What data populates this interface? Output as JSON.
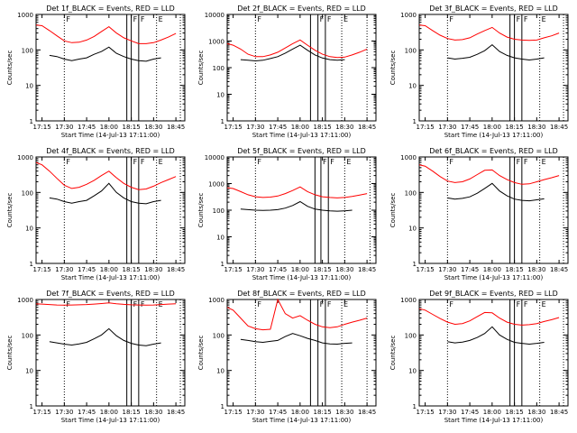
{
  "figure": {
    "y_axis_label": "Counts/sec",
    "x_axis_label": "Start Time (14-Jul-13 17:11:00)"
  },
  "chart_data": [
    {
      "type": "line",
      "title": "Det 1f_BLACK = Events, RED = LLD",
      "xlabel": "Start Time (14-Jul-13 17:11:00)",
      "ylabel": "Counts/sec",
      "yscale": "log",
      "ylim": [
        1,
        1000
      ],
      "x_tick_labels": [
        "17:15",
        "17:30",
        "17:45",
        "18:00",
        "18:15",
        "18:30",
        "18:45"
      ],
      "y_tick_labels": [
        "1",
        "10",
        "100",
        "1000"
      ],
      "x": [
        "17:11",
        "17:15",
        "17:20",
        "17:25",
        "17:30",
        "17:35",
        "17:40",
        "17:45",
        "17:50",
        "17:55",
        "18:00",
        "18:05",
        "18:10",
        "18:15",
        "18:20",
        "18:25",
        "18:30",
        "18:35",
        "18:40",
        "18:45"
      ],
      "series": [
        {
          "color": "#ff0000",
          "values": [
            500,
            480,
            350,
            250,
            180,
            160,
            165,
            190,
            240,
            330,
            450,
            300,
            220,
            180,
            150,
            150,
            160,
            190,
            230,
            290
          ]
        },
        {
          "color": "#000000",
          "values": [
            null,
            null,
            70,
            65,
            55,
            50,
            55,
            60,
            75,
            90,
            120,
            80,
            65,
            55,
            50,
            48,
            55,
            60,
            null,
            null
          ]
        }
      ],
      "vertical_lines": {
        "solid": [
          "18:12",
          "18:15",
          "18:20"
        ],
        "dotted": [
          "17:30",
          "18:32",
          "18:48"
        ]
      },
      "annotations": [
        "F",
        "F",
        "F",
        "E"
      ]
    },
    {
      "type": "line",
      "title": "Det 2f_BLACK = Events, RED = LLD",
      "xlabel": "Start Time (14-Jul-13 17:11:00)",
      "ylabel": "Counts/sec",
      "yscale": "log",
      "ylim": [
        1,
        10000
      ],
      "x_tick_labels": [
        "17:15",
        "17:30",
        "17:45",
        "18:00",
        "18:15",
        "18:30",
        "18:45"
      ],
      "y_tick_labels": [
        "1",
        "10",
        "100",
        "1000",
        "10000"
      ],
      "x": [
        "17:11",
        "17:15",
        "17:20",
        "17:25",
        "17:30",
        "17:35",
        "17:40",
        "17:45",
        "17:50",
        "17:55",
        "18:00",
        "18:05",
        "18:10",
        "18:15",
        "18:20",
        "18:25",
        "18:30",
        "18:35",
        "18:40",
        "18:45"
      ],
      "series": [
        {
          "color": "#ff0000",
          "values": [
            800,
            700,
            500,
            320,
            260,
            260,
            300,
            380,
            550,
            800,
            1100,
            700,
            450,
            320,
            260,
            240,
            250,
            300,
            380,
            500
          ]
        },
        {
          "color": "#000000",
          "values": [
            null,
            null,
            200,
            190,
            180,
            190,
            220,
            260,
            350,
            500,
            700,
            450,
            300,
            230,
            200,
            190,
            200,
            null,
            null,
            null
          ]
        }
      ],
      "vertical_lines": {
        "solid": [
          "18:07",
          "18:12",
          "18:17"
        ],
        "dotted": [
          "17:30",
          "18:28",
          "18:45"
        ]
      },
      "annotations": [
        "F",
        "F",
        "F",
        "E"
      ]
    },
    {
      "type": "line",
      "title": "Det 3f_BLACK = Events, RED = LLD",
      "xlabel": "Start Time (14-Jul-13 17:11:00)",
      "ylabel": "Counts/sec",
      "yscale": "log",
      "ylim": [
        1,
        1000
      ],
      "x_tick_labels": [
        "17:15",
        "17:30",
        "17:45",
        "18:00",
        "18:15",
        "18:30",
        "18:45"
      ],
      "y_tick_labels": [
        "1",
        "10",
        "100",
        "1000"
      ],
      "x": [
        "17:11",
        "17:15",
        "17:20",
        "17:25",
        "17:30",
        "17:35",
        "17:40",
        "17:45",
        "17:50",
        "17:55",
        "18:00",
        "18:05",
        "18:10",
        "18:15",
        "18:20",
        "18:25",
        "18:30",
        "18:35",
        "18:40",
        "18:45"
      ],
      "series": [
        {
          "color": "#ff0000",
          "values": [
            500,
            480,
            350,
            260,
            210,
            190,
            195,
            220,
            280,
            350,
            430,
            300,
            230,
            200,
            190,
            185,
            190,
            220,
            250,
            300
          ]
        },
        {
          "color": "#000000",
          "values": [
            null,
            null,
            null,
            null,
            60,
            55,
            58,
            62,
            75,
            95,
            140,
            90,
            70,
            60,
            55,
            52,
            55,
            60,
            null,
            null
          ]
        }
      ],
      "vertical_lines": {
        "solid": [
          "18:12",
          "18:15",
          "18:20"
        ],
        "dotted": [
          "17:30",
          "18:32",
          "18:48"
        ]
      },
      "annotations": [
        "F",
        "F",
        "F",
        "E"
      ]
    },
    {
      "type": "line",
      "title": "Det 4f_BLACK = Events, RED = LLD",
      "xlabel": "Start Time (14-Jul-13 17:11:00)",
      "ylabel": "Counts/sec",
      "yscale": "log",
      "ylim": [
        1,
        1000
      ],
      "x_tick_labels": [
        "17:15",
        "17:30",
        "17:45",
        "18:00",
        "18:15",
        "18:30",
        "18:45"
      ],
      "y_tick_labels": [
        "1",
        "10",
        "100",
        "1000"
      ],
      "x": [
        "17:11",
        "17:15",
        "17:20",
        "17:25",
        "17:30",
        "17:35",
        "17:40",
        "17:45",
        "17:50",
        "17:55",
        "18:00",
        "18:05",
        "18:10",
        "18:15",
        "18:20",
        "18:25",
        "18:30",
        "18:35",
        "18:40",
        "18:45"
      ],
      "series": [
        {
          "color": "#ff0000",
          "values": [
            700,
            600,
            400,
            250,
            160,
            130,
            140,
            170,
            220,
            300,
            400,
            260,
            180,
            140,
            120,
            125,
            150,
            190,
            230,
            280
          ]
        },
        {
          "color": "#000000",
          "values": [
            null,
            null,
            70,
            65,
            55,
            50,
            55,
            60,
            80,
            110,
            180,
            100,
            70,
            55,
            50,
            48,
            55,
            60,
            null,
            null
          ]
        }
      ],
      "vertical_lines": {
        "solid": [
          "18:12",
          "18:15",
          "18:20"
        ],
        "dotted": [
          "17:30",
          "18:32",
          "18:48"
        ]
      },
      "annotations": [
        "F",
        "F",
        "F",
        "E"
      ]
    },
    {
      "type": "line",
      "title": "Det 5f_BLACK = Events, RED = LLD",
      "xlabel": "Start Time (14-Jul-13 17:11:00)",
      "ylabel": "Counts/sec",
      "yscale": "log",
      "ylim": [
        1,
        10000
      ],
      "x_tick_labels": [
        "17:15",
        "17:30",
        "17:45",
        "18:00",
        "18:15",
        "18:30",
        "18:45"
      ],
      "y_tick_labels": [
        "1",
        "10",
        "100",
        "1000",
        "10000"
      ],
      "x": [
        "17:11",
        "17:15",
        "17:20",
        "17:25",
        "17:30",
        "17:35",
        "17:40",
        "17:45",
        "17:50",
        "17:55",
        "18:00",
        "18:05",
        "18:10",
        "18:15",
        "18:20",
        "18:25",
        "18:30",
        "18:35",
        "18:40",
        "18:45"
      ],
      "series": [
        {
          "color": "#ff0000",
          "values": [
            700,
            650,
            500,
            380,
            320,
            300,
            310,
            340,
            420,
            550,
            750,
            500,
            380,
            320,
            300,
            290,
            300,
            330,
            370,
            420
          ]
        },
        {
          "color": "#000000",
          "values": [
            null,
            null,
            110,
            105,
            100,
            98,
            100,
            105,
            120,
            150,
            210,
            140,
            110,
            100,
            95,
            92,
            95,
            100,
            null,
            null
          ]
        }
      ],
      "vertical_lines": {
        "solid": [
          "18:10",
          "18:14",
          "18:19"
        ],
        "dotted": [
          "17:30",
          "18:30",
          "18:47"
        ]
      },
      "annotations": [
        "F",
        "F",
        "F",
        "E"
      ]
    },
    {
      "type": "line",
      "title": "Det 6f_BLACK = Events, RED = LLD",
      "xlabel": "Start Time (14-Jul-13 17:11:00)",
      "ylabel": "Counts/sec",
      "yscale": "log",
      "ylim": [
        1,
        1000
      ],
      "x_tick_labels": [
        "17:15",
        "17:30",
        "17:45",
        "18:00",
        "18:15",
        "18:30",
        "18:45"
      ],
      "y_tick_labels": [
        "1",
        "10",
        "100",
        "1000"
      ],
      "x": [
        "17:11",
        "17:15",
        "17:20",
        "17:25",
        "17:30",
        "17:35",
        "17:40",
        "17:45",
        "17:50",
        "17:55",
        "18:00",
        "18:05",
        "18:10",
        "18:15",
        "18:20",
        "18:25",
        "18:30",
        "18:35",
        "18:40",
        "18:45"
      ],
      "series": [
        {
          "color": "#ff0000",
          "values": [
            600,
            550,
            400,
            280,
            210,
            190,
            200,
            240,
            320,
            420,
            430,
            300,
            230,
            190,
            170,
            175,
            200,
            230,
            260,
            300
          ]
        },
        {
          "color": "#000000",
          "values": [
            null,
            null,
            null,
            null,
            70,
            65,
            68,
            75,
            95,
            130,
            180,
            110,
            80,
            65,
            60,
            58,
            62,
            66,
            null,
            null
          ]
        }
      ],
      "vertical_lines": {
        "solid": [
          "18:12",
          "18:15",
          "18:20"
        ],
        "dotted": [
          "17:30",
          "18:32",
          "18:48"
        ]
      },
      "annotations": [
        "F",
        "F",
        "F",
        "E"
      ]
    },
    {
      "type": "line",
      "title": "Det 7f_BLACK = Events, RED = LLD",
      "xlabel": "Start Time (14-Jul-13 17:11:00)",
      "ylabel": "Counts/sec",
      "yscale": "log",
      "ylim": [
        1,
        1000
      ],
      "x_tick_labels": [
        "17:15",
        "17:30",
        "17:45",
        "18:00",
        "18:15",
        "18:30",
        "18:45"
      ],
      "y_tick_labels": [
        "1",
        "10",
        "100",
        "1000"
      ],
      "x": [
        "17:11",
        "17:15",
        "17:20",
        "17:25",
        "17:30",
        "17:35",
        "17:40",
        "17:45",
        "17:50",
        "17:55",
        "18:00",
        "18:05",
        "18:10",
        "18:15",
        "18:20",
        "18:25",
        "18:30",
        "18:35",
        "18:40",
        "18:45"
      ],
      "series": [
        {
          "color": "#ff0000",
          "values": [
            750,
            740,
            720,
            700,
            690,
            700,
            710,
            720,
            740,
            770,
            800,
            760,
            730,
            710,
            700,
            690,
            700,
            720,
            740,
            760
          ]
        },
        {
          "color": "#000000",
          "values": [
            null,
            null,
            65,
            60,
            55,
            52,
            56,
            62,
            78,
            100,
            150,
            95,
            70,
            58,
            52,
            50,
            55,
            60,
            null,
            null
          ]
        }
      ],
      "vertical_lines": {
        "solid": [
          "18:12",
          "18:15",
          "18:20"
        ],
        "dotted": [
          "17:30",
          "18:32",
          "18:48"
        ]
      },
      "annotations": [
        "F",
        "F",
        "F",
        "E"
      ]
    },
    {
      "type": "line",
      "title": "Det 8f_BLACK = Events, RED = LLD",
      "xlabel": "Start Time (14-Jul-13 17:11:00)",
      "ylabel": "Counts/sec",
      "yscale": "log",
      "ylim": [
        1,
        1000
      ],
      "x_tick_labels": [
        "17:15",
        "17:30",
        "17:45",
        "18:00",
        "18:15",
        "18:30",
        "18:45"
      ],
      "y_tick_labels": [
        "1",
        "10",
        "100",
        "1000"
      ],
      "x": [
        "17:11",
        "17:15",
        "17:20",
        "17:25",
        "17:30",
        "17:35",
        "17:40",
        "17:45",
        "17:50",
        "17:55",
        "18:00",
        "18:05",
        "18:10",
        "18:15",
        "18:20",
        "18:25",
        "18:30",
        "18:35",
        "18:40",
        "18:45"
      ],
      "series": [
        {
          "color": "#ff0000",
          "values": [
            600,
            500,
            300,
            180,
            150,
            140,
            145,
            1000,
            400,
            300,
            350,
            260,
            200,
            170,
            160,
            170,
            200,
            230,
            260,
            300
          ]
        },
        {
          "color": "#000000",
          "values": [
            null,
            null,
            75,
            70,
            65,
            62,
            66,
            70,
            90,
            110,
            95,
            80,
            70,
            60,
            56,
            55,
            58,
            60,
            null,
            null
          ]
        }
      ],
      "vertical_lines": {
        "solid": [
          "18:07",
          "18:12",
          "18:17"
        ],
        "dotted": [
          "17:30",
          "18:28",
          "18:45"
        ]
      },
      "annotations": [
        "F",
        "F",
        "F",
        "E"
      ]
    },
    {
      "type": "line",
      "title": "Det 9f_BLACK = Events, RED = LLD",
      "xlabel": "Start Time (14-Jul-13 17:11:00)",
      "ylabel": "Counts/sec",
      "yscale": "log",
      "ylim": [
        1,
        1000
      ],
      "x_tick_labels": [
        "17:15",
        "17:30",
        "17:45",
        "18:00",
        "18:15",
        "18:30",
        "18:45"
      ],
      "y_tick_labels": [
        "1",
        "10",
        "100",
        "1000"
      ],
      "x": [
        "17:11",
        "17:15",
        "17:20",
        "17:25",
        "17:30",
        "17:35",
        "17:40",
        "17:45",
        "17:50",
        "17:55",
        "18:00",
        "18:05",
        "18:10",
        "18:15",
        "18:20",
        "18:25",
        "18:30",
        "18:35",
        "18:40",
        "18:45"
      ],
      "series": [
        {
          "color": "#ff0000",
          "values": [
            550,
            500,
            380,
            290,
            230,
            200,
            210,
            250,
            330,
            430,
            420,
            300,
            230,
            200,
            190,
            195,
            210,
            240,
            270,
            310
          ]
        },
        {
          "color": "#000000",
          "values": [
            null,
            null,
            null,
            null,
            65,
            60,
            63,
            70,
            85,
            110,
            170,
            100,
            75,
            62,
            58,
            55,
            58,
            62,
            null,
            null
          ]
        }
      ],
      "vertical_lines": {
        "solid": [
          "18:12",
          "18:15",
          "18:20"
        ],
        "dotted": [
          "17:30",
          "18:32",
          "18:48"
        ]
      },
      "annotations": [
        "F",
        "F",
        "F",
        "E"
      ]
    }
  ]
}
